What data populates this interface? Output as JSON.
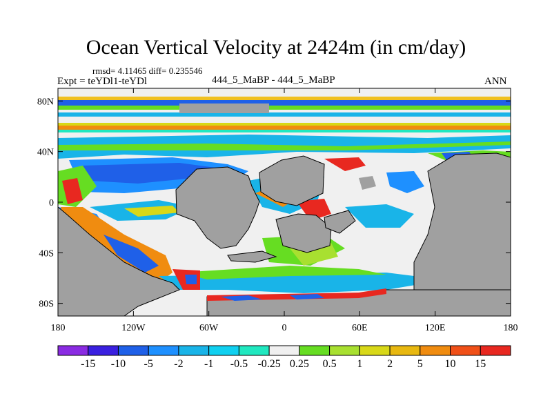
{
  "title": "Ocean Vertical Velocity at 2424m (in cm/day)",
  "stats": "rmsd= 4.11465 diff= 0.235546",
  "expt_label": "Expt = teYDl1-teYDl",
  "case_label": "444_5_MaBP - 444_5_MaBP",
  "season": "ANN",
  "axes": {
    "y_ticks": [
      {
        "label": "80N",
        "value": 80
      },
      {
        "label": "40N",
        "value": 40
      },
      {
        "label": "0",
        "value": 0
      },
      {
        "label": "40S",
        "value": -40
      },
      {
        "label": "80S",
        "value": -80
      }
    ],
    "x_ticks": [
      {
        "label": "180",
        "value": -180
      },
      {
        "label": "120W",
        "value": -120
      },
      {
        "label": "60W",
        "value": -60
      },
      {
        "label": "0",
        "value": 0
      },
      {
        "label": "60E",
        "value": 60
      },
      {
        "label": "120E",
        "value": 120
      },
      {
        "label": "180",
        "value": 180
      }
    ],
    "lon_range": [
      -180,
      180
    ],
    "lat_range": [
      -90,
      90
    ]
  },
  "colorbar": {
    "colors": [
      "#8a2be2",
      "#3a20e0",
      "#1f60e8",
      "#1e90ff",
      "#19b4e8",
      "#10d0f0",
      "#20e8c0",
      "#f0f0f0",
      "#66dd22",
      "#a8e030",
      "#d8d818",
      "#e8b810",
      "#f08c10",
      "#f05018",
      "#e82820"
    ],
    "labels": [
      "-15",
      "-10",
      "-5",
      "-2",
      "-1",
      "-0.5",
      "-0.25",
      "0.25",
      "0.5",
      "1",
      "2",
      "5",
      "10",
      "15"
    ]
  },
  "colors": {
    "land": "#a0a0a0",
    "ocean_base": "#f0f0f0"
  }
}
